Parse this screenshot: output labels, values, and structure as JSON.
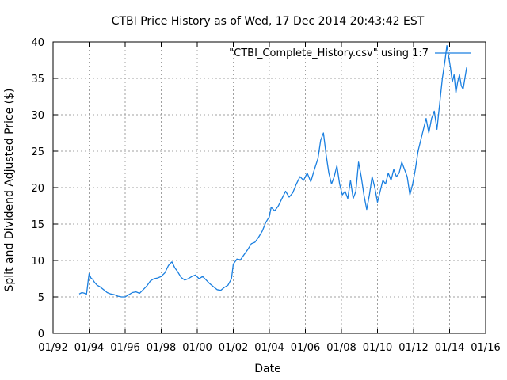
{
  "chart_data": {
    "type": "line",
    "title": "CTBI Price History as of Wed, 17 Dec 2014 20:43:42 EST",
    "xlabel": "Date",
    "ylabel": "Split and Dividend Adjusted Price ($)",
    "xlim": [
      1992.0,
      2016.0
    ],
    "ylim": [
      0,
      40
    ],
    "grid": true,
    "x_ticks": [
      {
        "value": 1992.0,
        "label": "01/92"
      },
      {
        "value": 1994.0,
        "label": "01/94"
      },
      {
        "value": 1996.0,
        "label": "01/96"
      },
      {
        "value": 1998.0,
        "label": "01/98"
      },
      {
        "value": 2000.0,
        "label": "01/00"
      },
      {
        "value": 2002.0,
        "label": "01/02"
      },
      {
        "value": 2004.0,
        "label": "01/04"
      },
      {
        "value": 2006.0,
        "label": "01/06"
      },
      {
        "value": 2008.0,
        "label": "01/08"
      },
      {
        "value": 2010.0,
        "label": "01/10"
      },
      {
        "value": 2012.0,
        "label": "01/12"
      },
      {
        "value": 2014.0,
        "label": "01/14"
      },
      {
        "value": 2016.0,
        "label": "01/16"
      }
    ],
    "y_ticks": [
      {
        "value": 0,
        "label": "0"
      },
      {
        "value": 5,
        "label": "5"
      },
      {
        "value": 10,
        "label": "10"
      },
      {
        "value": 15,
        "label": "15"
      },
      {
        "value": 20,
        "label": "20"
      },
      {
        "value": 25,
        "label": "25"
      },
      {
        "value": 30,
        "label": "30"
      },
      {
        "value": 35,
        "label": "35"
      },
      {
        "value": 40,
        "label": "40"
      }
    ],
    "legend": {
      "position": "top-right",
      "label": "\"CTBI_Complete_History.csv\" using 1:7"
    },
    "series": [
      {
        "name": "\"CTBI_Complete_History.csv\" using 1:7",
        "color": "#1a7fe0",
        "x": [
          1993.45,
          1993.6,
          1993.75,
          1993.85,
          1993.9,
          1993.95,
          1994.0,
          1994.1,
          1994.2,
          1994.3,
          1994.45,
          1994.6,
          1994.8,
          1995.0,
          1995.2,
          1995.4,
          1995.6,
          1995.8,
          1996.0,
          1996.2,
          1996.4,
          1996.6,
          1996.8,
          1997.0,
          1997.2,
          1997.4,
          1997.6,
          1997.8,
          1998.0,
          1998.2,
          1998.4,
          1998.5,
          1998.6,
          1998.75,
          1998.9,
          1999.1,
          1999.3,
          1999.5,
          1999.7,
          1999.9,
          2000.1,
          2000.3,
          2000.5,
          2000.7,
          2000.9,
          2001.1,
          2001.3,
          2001.5,
          2001.7,
          2001.9,
          2002.0,
          2002.2,
          2002.4,
          2002.6,
          2002.8,
          2003.0,
          2003.2,
          2003.4,
          2003.6,
          2003.8,
          2004.0,
          2004.1,
          2004.3,
          2004.5,
          2004.7,
          2004.9,
          2005.1,
          2005.3,
          2005.5,
          2005.7,
          2005.9,
          2006.1,
          2006.3,
          2006.5,
          2006.7,
          2006.85,
          2007.0,
          2007.15,
          2007.3,
          2007.45,
          2007.6,
          2007.75,
          2007.9,
          2008.05,
          2008.2,
          2008.35,
          2008.5,
          2008.65,
          2008.8,
          2008.95,
          2009.1,
          2009.25,
          2009.4,
          2009.55,
          2009.7,
          2009.85,
          2010.0,
          2010.15,
          2010.3,
          2010.45,
          2010.6,
          2010.75,
          2010.9,
          2011.05,
          2011.2,
          2011.35,
          2011.5,
          2011.65,
          2011.8,
          2011.95,
          2012.1,
          2012.25,
          2012.4,
          2012.55,
          2012.7,
          2012.85,
          2013.0,
          2013.15,
          2013.3,
          2013.45,
          2013.6,
          2013.75,
          2013.85,
          2013.95,
          2014.05,
          2014.15,
          2014.25,
          2014.35,
          2014.45,
          2014.55,
          2014.65,
          2014.75,
          2014.85,
          2014.95
        ],
        "values": [
          5.4,
          5.6,
          5.5,
          5.3,
          6.2,
          7.3,
          8.2,
          7.6,
          7.4,
          7.0,
          6.6,
          6.4,
          6.0,
          5.6,
          5.4,
          5.3,
          5.1,
          5.0,
          5.0,
          5.3,
          5.6,
          5.7,
          5.5,
          6.0,
          6.5,
          7.2,
          7.5,
          7.6,
          7.8,
          8.3,
          9.3,
          9.6,
          9.8,
          9.0,
          8.5,
          7.7,
          7.3,
          7.5,
          7.8,
          8.0,
          7.5,
          7.8,
          7.3,
          6.8,
          6.4,
          6.0,
          5.9,
          6.3,
          6.6,
          7.5,
          9.5,
          10.2,
          10.1,
          10.8,
          11.5,
          12.3,
          12.5,
          13.2,
          14.0,
          15.2,
          16.0,
          17.3,
          16.8,
          17.5,
          18.5,
          19.5,
          18.7,
          19.3,
          20.5,
          21.5,
          21.0,
          22.0,
          20.8,
          22.5,
          24.0,
          26.5,
          27.5,
          24.5,
          22.0,
          20.5,
          21.5,
          23.0,
          20.5,
          19.0,
          19.5,
          18.5,
          21.0,
          18.5,
          19.5,
          23.5,
          21.5,
          19.0,
          17.0,
          19.0,
          21.5,
          20.0,
          18.0,
          19.5,
          21.0,
          20.5,
          22.0,
          21.0,
          22.5,
          21.5,
          22.0,
          23.5,
          22.5,
          21.5,
          19.0,
          20.5,
          22.5,
          25.0,
          26.5,
          28.0,
          29.5,
          27.5,
          29.5,
          30.5,
          28.0,
          31.5,
          35.0,
          37.5,
          39.5,
          38.0,
          36.5,
          34.5,
          35.5,
          33.0,
          34.5,
          35.5,
          34.0,
          33.5,
          35.0,
          36.5
        ]
      }
    ]
  }
}
